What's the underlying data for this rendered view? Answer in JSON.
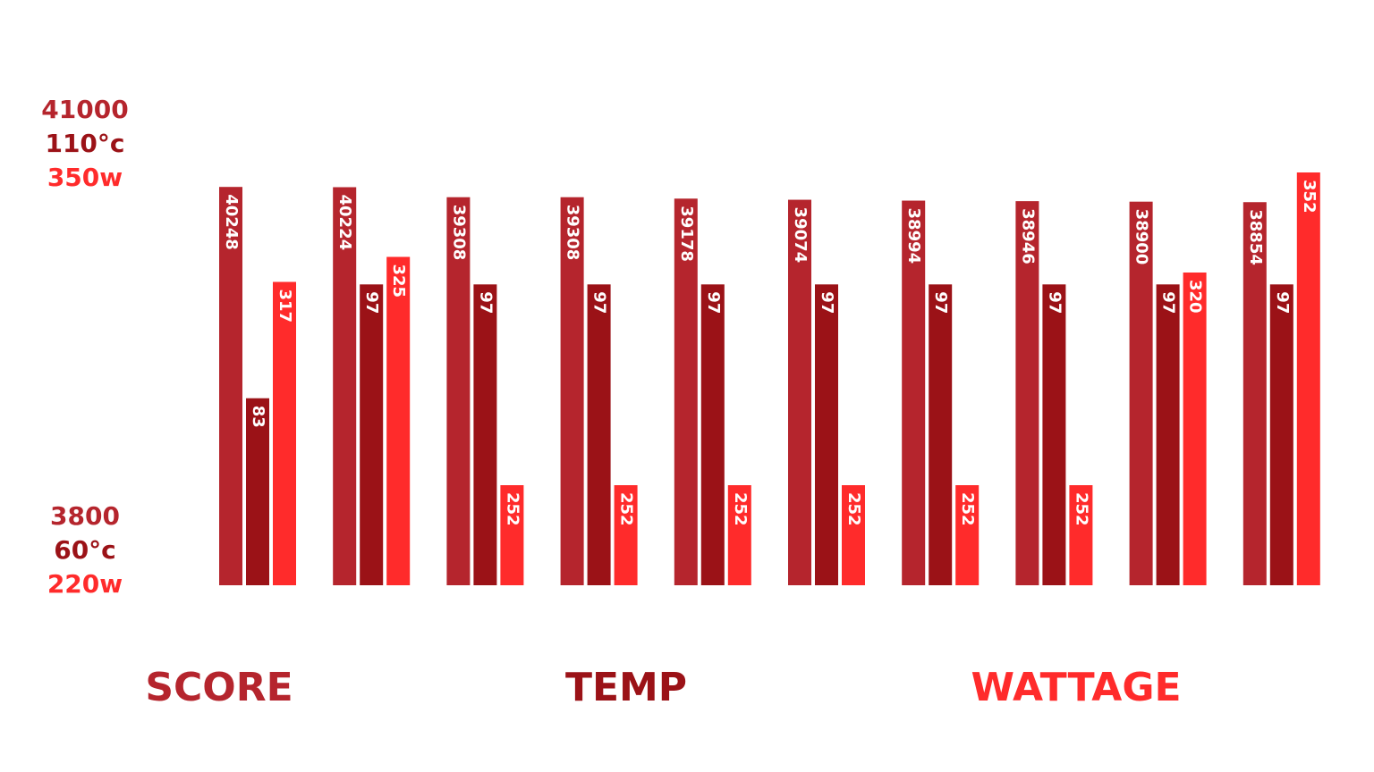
{
  "chart_data": {
    "type": "bar",
    "categories": [
      null,
      null,
      null,
      null,
      null,
      null,
      null,
      null,
      null,
      null
    ],
    "series": [
      {
        "name": "SCORE",
        "color": "#b5252d",
        "values": [
          40248,
          40224,
          39308,
          39308,
          39178,
          39074,
          38994,
          38946,
          38900,
          38854
        ],
        "ylim": [
          3800,
          41000
        ],
        "yticks": [
          3800,
          41000
        ]
      },
      {
        "name": "TEMP",
        "color": "#9b1217",
        "values": [
          83,
          97,
          97,
          97,
          97,
          97,
          97,
          97,
          97,
          97
        ],
        "ylim": [
          60,
          110
        ],
        "yticks": [
          {
            "value": 60,
            "label": "60°c"
          },
          {
            "value": 110,
            "label": "110°c"
          }
        ]
      },
      {
        "name": "WATTAGE",
        "color": "#ff2b2b",
        "values": [
          317,
          325,
          252,
          252,
          252,
          252,
          252,
          252,
          320,
          352
        ],
        "ylim": [
          220,
          350
        ],
        "yticks": [
          {
            "value": 220,
            "label": "220w"
          },
          {
            "value": 350,
            "label": "350w"
          }
        ]
      }
    ]
  }
}
